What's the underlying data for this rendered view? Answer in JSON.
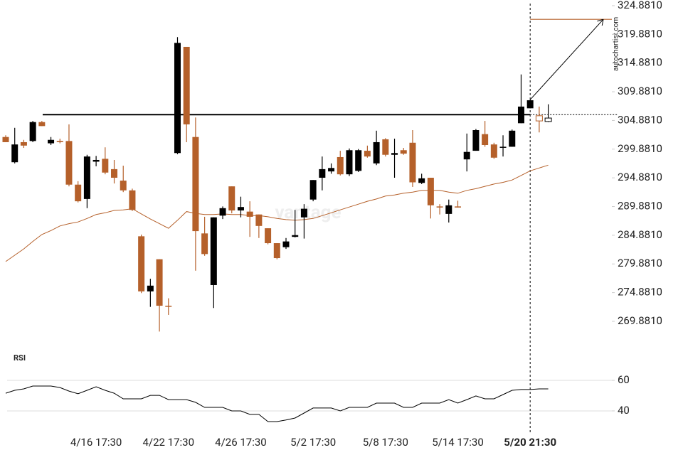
{
  "chart_data": [
    {
      "type": "candlestick",
      "categories": [
        null,
        null,
        null,
        null,
        null,
        null,
        null,
        null,
        null,
        null,
        "4/16 17:30",
        null,
        null,
        null,
        null,
        null,
        null,
        null,
        "4/22 17:30",
        null,
        null,
        null,
        null,
        null,
        null,
        null,
        "4/26 17:30",
        null,
        null,
        null,
        null,
        null,
        null,
        null,
        "5/2 17:30",
        null,
        null,
        null,
        null,
        null,
        null,
        null,
        "5/8 17:30",
        null,
        null,
        null,
        null,
        null,
        null,
        null,
        "5/14 17:30",
        null,
        null,
        null,
        null,
        null,
        null,
        null,
        "5/20 21:30",
        null,
        null
      ],
      "open": [
        302.0,
        297.6,
        301.1,
        301.3,
        304.6,
        300.9,
        301.3,
        301.3,
        293.7,
        291.2,
        297.7,
        298.2,
        296.4,
        294.4,
        292.7,
        284.7,
        275.1,
        280.7,
        272.6,
        299.2,
        317.7,
        302.0,
        285.2,
        276.2,
        288.3,
        293.4,
        289.2,
        289.0,
        288.5,
        286.1,
        283.5,
        282.8,
        284.6,
        288.0,
        291.1,
        294.9,
        296.0,
        298.5,
        295.5,
        296.1,
        299.6,
        297.4,
        301.6,
        298.9,
        299.7,
        301.0,
        294.0,
        294.9,
        289.9,
        288.6,
        289.9,
        298.1,
        299.6,
        302.5,
        300.7,
        300.2,
        300.3,
        304.4,
        307.0,
        305.7,
        304.7
      ],
      "high": [
        302.3,
        303.6,
        301.5,
        304.8,
        304.8,
        302.0,
        301.7,
        304.2,
        294.3,
        298.9,
        298.7,
        300.2,
        298.0,
        297.0,
        293.0,
        285.0,
        277.3,
        280.7,
        273.9,
        319.4,
        317.7,
        305.4,
        288.1,
        288.0,
        289.9,
        293.4,
        291.6,
        290.8,
        288.5,
        286.1,
        283.5,
        284.4,
        289.3,
        290.3,
        294.5,
        298.6,
        297.4,
        299.6,
        300.0,
        299.9,
        300.5,
        303.1,
        301.8,
        301.7,
        300.1,
        303.2,
        295.6,
        294.9,
        290.3,
        291.1,
        290.9,
        302.6,
        303.4,
        304.8,
        301.0,
        302.3,
        303.3,
        312.9,
        308.5,
        307.3,
        307.7
      ],
      "low": [
        301.1,
        297.4,
        300.1,
        301.1,
        303.9,
        300.6,
        300.9,
        293.4,
        290.6,
        289.6,
        296.9,
        295.5,
        293.9,
        292.4,
        289.1,
        274.8,
        272.4,
        268.1,
        271.0,
        299.0,
        301.1,
        278.7,
        281.3,
        272.2,
        287.7,
        288.7,
        288.0,
        284.6,
        284.4,
        283.3,
        280.7,
        282.5,
        284.5,
        284.3,
        290.8,
        292.7,
        295.6,
        295.3,
        295.2,
        295.9,
        298.4,
        297.1,
        298.6,
        294.9,
        298.9,
        293.3,
        293.8,
        287.8,
        288.5,
        287.1,
        289.7,
        296.0,
        299.6,
        300.3,
        298.2,
        298.6,
        300.3,
        304.4,
        307.0,
        302.8,
        304.6
      ],
      "close": [
        301.1,
        300.7,
        300.5,
        304.6,
        303.9,
        301.5,
        301.1,
        293.7,
        290.8,
        298.6,
        298.0,
        295.8,
        294.9,
        292.7,
        289.3,
        275.1,
        276.1,
        272.6,
        272.5,
        318.4,
        304.2,
        285.6,
        281.6,
        288.0,
        289.6,
        289.2,
        289.8,
        288.1,
        286.5,
        283.5,
        280.9,
        283.8,
        284.9,
        289.5,
        294.5,
        296.4,
        296.6,
        295.5,
        299.7,
        299.7,
        298.6,
        301.1,
        298.9,
        299.2,
        299.1,
        294.1,
        294.8,
        290.1,
        289.8,
        290.1,
        289.8,
        299.4,
        303.2,
        300.6,
        298.4,
        300.3,
        303.1,
        307.3,
        308.4,
        304.8,
        305.3
      ],
      "up_color": "#000000",
      "down_color": "#b5602a",
      "overlay": {
        "color": "#b5602a",
        "values": [
          280.3,
          281.4,
          282.5,
          283.8,
          285.0,
          285.7,
          286.5,
          286.9,
          287.2,
          287.8,
          288.5,
          288.8,
          289.2,
          289.3,
          289.5,
          288.6,
          287.7,
          286.9,
          286.1,
          287.5,
          289.0,
          288.7,
          288.5,
          288.5,
          288.6,
          288.5,
          288.5,
          288.3,
          288.3,
          288.1,
          287.8,
          287.6,
          287.5,
          287.6,
          287.8,
          288.3,
          288.8,
          289.3,
          289.8,
          290.3,
          290.8,
          291.2,
          291.7,
          291.9,
          292.2,
          292.4,
          292.7,
          292.7,
          292.7,
          292.4,
          292.2,
          292.7,
          293.0,
          293.4,
          293.8,
          294.1,
          294.5,
          295.3,
          296.1,
          296.6,
          297.1
        ]
      },
      "level": 305.9,
      "target": 322.5,
      "ylim": [
        267.65,
        325.87
      ],
      "yticks": [
        {
          "value": 324.881,
          "label": "324.8810"
        },
        {
          "value": 319.881,
          "label": "319.8810"
        },
        {
          "value": 314.881,
          "label": "314.8810"
        },
        {
          "value": 309.881,
          "label": "309.8810"
        },
        {
          "value": 304.881,
          "label": "304.8810"
        },
        {
          "value": 299.881,
          "label": "299.8810"
        },
        {
          "value": 294.881,
          "label": "294.8810"
        },
        {
          "value": 289.881,
          "label": "289.8810"
        },
        {
          "value": 284.881,
          "label": "284.8810"
        },
        {
          "value": 279.881,
          "label": "279.8810"
        },
        {
          "value": 274.881,
          "label": "274.8810"
        },
        {
          "value": 269.881,
          "label": "269.8810"
        }
      ],
      "grid": false
    },
    {
      "type": "line",
      "title": "RSI",
      "color": "#000000",
      "values": [
        51.6,
        53.5,
        54.4,
        56.3,
        56.3,
        56.3,
        55.3,
        53.0,
        51.2,
        53.5,
        55.8,
        53.5,
        51.6,
        47.9,
        47.9,
        47.9,
        50.2,
        50.2,
        47.4,
        47.4,
        47.4,
        45.6,
        42.3,
        42.3,
        42.3,
        40.0,
        40.0,
        37.7,
        37.7,
        33.0,
        33.0,
        34.0,
        35.3,
        38.6,
        41.9,
        41.9,
        41.9,
        40.0,
        42.3,
        42.3,
        42.3,
        45.1,
        45.1,
        45.1,
        42.3,
        42.3,
        45.1,
        45.1,
        45.1,
        47.4,
        45.1,
        47.4,
        49.8,
        47.9,
        47.9,
        50.7,
        53.5,
        54.0,
        54.0,
        54.4,
        54.4
      ],
      "ylim": [
        27.4,
        67.0
      ],
      "yticks": [
        60,
        40
      ],
      "grid": true
    }
  ],
  "watermark": "vantage",
  "source": "autochartist.com"
}
